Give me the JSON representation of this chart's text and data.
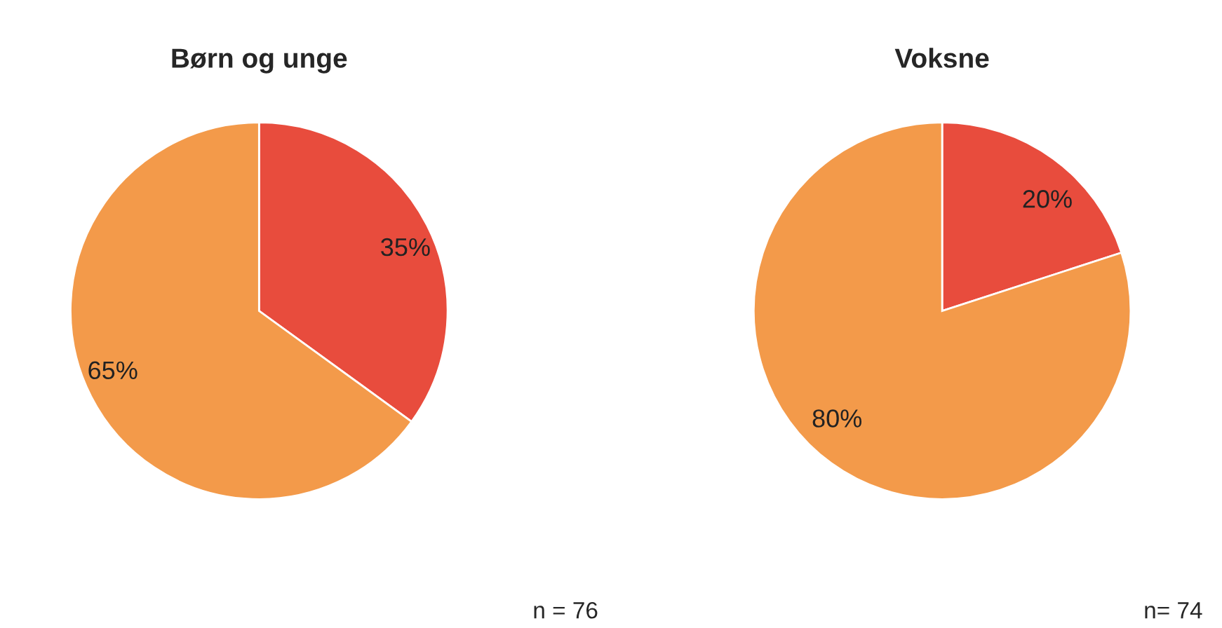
{
  "chart_data": [
    {
      "type": "pie",
      "title": "Børn og unge",
      "categories": [
        null,
        null
      ],
      "values": [
        35,
        65
      ],
      "colors": [
        "#e84c3d",
        "#f39a4a"
      ],
      "value_labels": [
        "35%",
        "65%"
      ],
      "annotations": [
        "n = 76"
      ]
    },
    {
      "type": "pie",
      "title": "Voksne",
      "categories": [
        null,
        null
      ],
      "values": [
        20,
        80
      ],
      "colors": [
        "#e84c3d",
        "#f39a4a"
      ],
      "value_labels": [
        "20%",
        "80%"
      ],
      "annotations": [
        "n= 74"
      ]
    }
  ]
}
